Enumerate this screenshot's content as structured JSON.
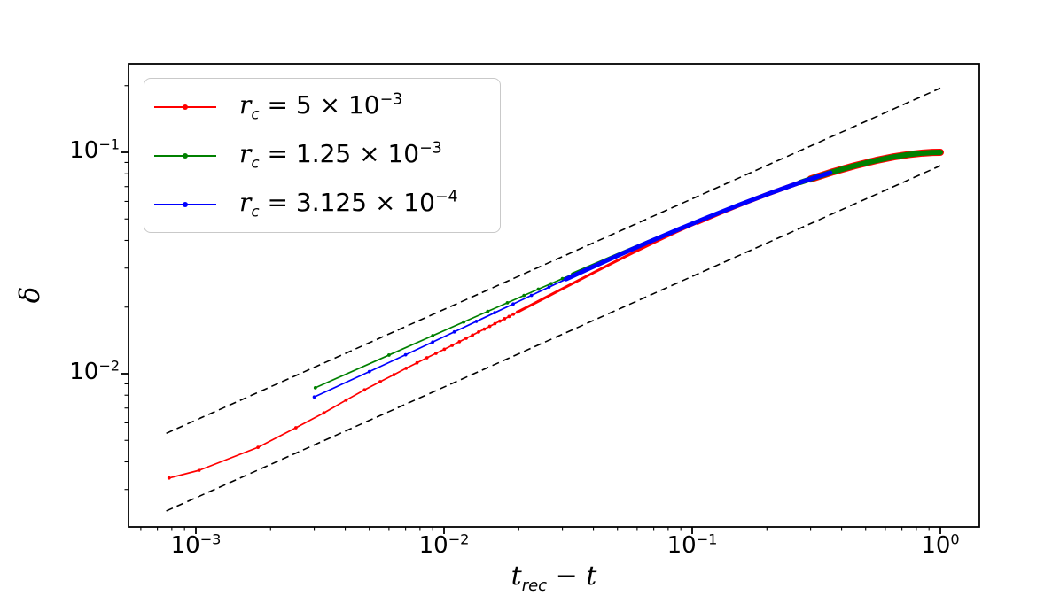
{
  "figure": {
    "background": "#ffffff"
  },
  "axes": {
    "x": {
      "scale": "log",
      "label": {
        "t1": "t",
        "sub": "rec",
        "mid": " − ",
        "t2": "t"
      },
      "ticks": [
        {
          "base": "10",
          "exp": "−3",
          "log": -3
        },
        {
          "base": "10",
          "exp": "−2",
          "log": -2
        },
        {
          "base": "10",
          "exp": "−1",
          "log": -1
        },
        {
          "base": "10",
          "exp": "0",
          "log": 0
        }
      ],
      "log_range": [
        -3.2714,
        0.1571
      ]
    },
    "y": {
      "scale": "log",
      "label": "δ",
      "ticks": [
        {
          "base": "10",
          "exp": "−1",
          "log": -1
        },
        {
          "base": "10",
          "exp": "−2",
          "log": -2
        }
      ],
      "log_range": [
        -2.692,
        -0.6
      ]
    }
  },
  "legend": {
    "items": [
      {
        "color": "#ff0000",
        "parts": {
          "var": "r",
          "sub": "c",
          "mid": " = 5 × 10",
          "exp": "−3"
        }
      },
      {
        "color": "#008000",
        "parts": {
          "var": "r",
          "sub": "c",
          "mid": " = 1.25 × 10",
          "exp": "−3"
        }
      },
      {
        "color": "#0000ff",
        "parts": {
          "var": "r",
          "sub": "c",
          "mid": " = 3.125 × 10",
          "exp": "−4"
        }
      }
    ]
  },
  "chart_data": {
    "type": "line",
    "title": "",
    "xlabel": "t_rec − t",
    "ylabel": "δ",
    "xscale": "log",
    "yscale": "log",
    "xlim": [
      0.000535,
      1.436
    ],
    "ylim": [
      0.00203,
      0.2512
    ],
    "grid": false,
    "legend_position": "upper left",
    "series": [
      {
        "name": "r_c = 5 × 10⁻³",
        "color": "#ff0000",
        "marker": "dot",
        "points": [
          [
            0.00078,
            0.00338
          ],
          [
            0.00103,
            0.00366
          ],
          [
            0.00178,
            0.00465
          ],
          [
            0.00253,
            0.0057
          ],
          [
            0.00328,
            0.00665
          ],
          [
            0.00403,
            0.0076
          ],
          [
            0.00478,
            0.00845
          ],
          [
            0.00553,
            0.0092
          ],
          [
            0.00628,
            0.0099
          ],
          [
            0.00703,
            0.01058
          ],
          [
            0.00778,
            0.0112
          ],
          [
            0.00853,
            0.0118
          ],
          [
            0.00928,
            0.01236
          ],
          [
            0.01003,
            0.0129
          ],
          [
            0.01078,
            0.01343
          ],
          [
            0.01153,
            0.01395
          ],
          [
            0.01228,
            0.01445
          ],
          [
            0.01303,
            0.01495
          ],
          [
            0.01378,
            0.01543
          ],
          [
            0.01453,
            0.0159
          ],
          [
            0.01528,
            0.01636
          ],
          [
            0.01603,
            0.01682
          ],
          [
            0.01678,
            0.01727
          ],
          [
            0.01753,
            0.01771
          ],
          [
            0.01828,
            0.01814
          ],
          [
            0.01903,
            0.01857
          ],
          [
            0.01978,
            0.01899
          ],
          [
            0.022,
            0.02019
          ],
          [
            0.025,
            0.02175
          ],
          [
            0.029,
            0.02372
          ],
          [
            0.034,
            0.02602
          ],
          [
            0.04,
            0.02859
          ],
          [
            0.048,
            0.03173
          ],
          [
            0.058,
            0.03528
          ],
          [
            0.07,
            0.03909
          ],
          [
            0.085,
            0.0433
          ],
          [
            0.105,
            0.04816
          ],
          [
            0.13,
            0.05335
          ],
          [
            0.16,
            0.05864
          ],
          [
            0.2,
            0.06457
          ],
          [
            0.25,
            0.07069
          ],
          [
            0.3,
            0.07574
          ],
          [
            0.37,
            0.08167
          ],
          [
            0.45,
            0.08688
          ],
          [
            0.55,
            0.09187
          ],
          [
            0.65,
            0.09541
          ],
          [
            0.75,
            0.0978
          ],
          [
            0.85,
            0.09925
          ],
          [
            0.93,
            0.09984
          ],
          [
            1.0,
            0.1
          ]
        ]
      },
      {
        "name": "r_c = 1.25 × 10⁻³",
        "color": "#008000",
        "marker": "dot",
        "points": [
          [
            0.00303,
            0.00864
          ],
          [
            0.006,
            0.01214
          ],
          [
            0.009,
            0.01485
          ],
          [
            0.012,
            0.01712
          ],
          [
            0.015,
            0.01912
          ],
          [
            0.018,
            0.02092
          ],
          [
            0.021,
            0.02257
          ],
          [
            0.024,
            0.0241
          ],
          [
            0.027,
            0.02553
          ],
          [
            0.03,
            0.02687
          ],
          [
            0.033,
            0.02815
          ],
          [
            0.0379,
            0.03011
          ],
          [
            0.0502,
            0.03447
          ],
          [
            0.0665,
            0.03941
          ],
          [
            0.0881,
            0.04495
          ],
          [
            0.117,
            0.05118
          ],
          [
            0.155,
            0.05798
          ],
          [
            0.205,
            0.06528
          ],
          [
            0.272,
            0.07308
          ],
          [
            0.36,
            0.0809
          ],
          [
            0.44,
            0.0863
          ],
          [
            0.53,
            0.09096
          ],
          [
            0.63,
            0.09478
          ],
          [
            0.73,
            0.0974
          ],
          [
            0.83,
            0.09903
          ],
          [
            0.92,
            0.09979
          ],
          [
            1.0,
            0.1
          ]
        ]
      },
      {
        "name": "r_c = 3.125 × 10⁻⁴",
        "color": "#0000ff",
        "marker": "dot",
        "points": [
          [
            0.003,
            0.00785
          ],
          [
            0.005,
            0.01022
          ],
          [
            0.007,
            0.01218
          ],
          [
            0.009,
            0.0139
          ],
          [
            0.011,
            0.01545
          ],
          [
            0.0135,
            0.01723
          ],
          [
            0.016,
            0.01885
          ],
          [
            0.019,
            0.02065
          ],
          [
            0.0225,
            0.02259
          ],
          [
            0.0265,
            0.02462
          ],
          [
            0.031,
            0.02673
          ],
          [
            0.0379,
            0.02965
          ],
          [
            0.0502,
            0.03419
          ],
          [
            0.0665,
            0.03927
          ],
          [
            0.0881,
            0.0449
          ],
          [
            0.117,
            0.05117
          ],
          [
            0.155,
            0.05798
          ],
          [
            0.205,
            0.06528
          ],
          [
            0.272,
            0.07308
          ],
          [
            0.36,
            0.0809
          ]
        ]
      }
    ],
    "guides": [
      {
        "name": "upper-dashed-slope-half",
        "style": "dashed",
        "color": "#000000",
        "points": [
          [
            0.00076,
            0.00538
          ],
          [
            1.0,
            0.195
          ]
        ]
      },
      {
        "name": "lower-dashed-slope-half",
        "style": "dashed",
        "color": "#000000",
        "points": [
          [
            0.00076,
            0.0024
          ],
          [
            1.0,
            0.087
          ]
        ]
      }
    ]
  }
}
